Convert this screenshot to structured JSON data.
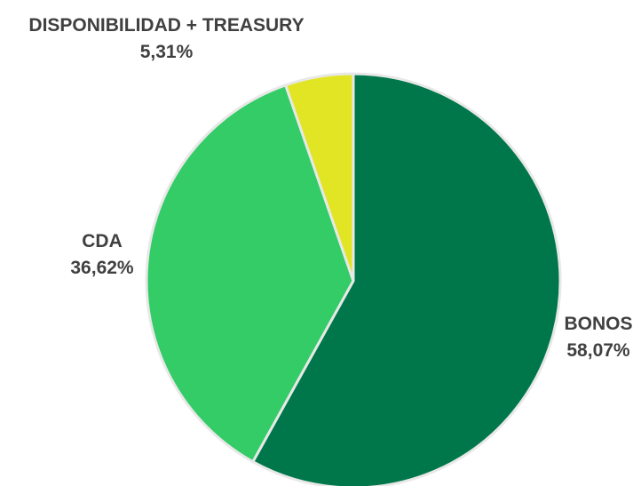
{
  "chart_data": {
    "type": "pie",
    "title": "",
    "slices": [
      {
        "label": "BONOS",
        "value": 58.07,
        "display": "58,07%",
        "color": "#00774B"
      },
      {
        "label": "CDA",
        "value": 36.62,
        "display": "36,62%",
        "color": "#33CC66"
      },
      {
        "label": "DISPONIBILIDAD + TREASURY",
        "value": 5.31,
        "display": "5,31%",
        "color": "#E2E524"
      }
    ],
    "start_angle": "top",
    "direction": "clockwise",
    "slice_border_color": "#e8e8e8"
  }
}
